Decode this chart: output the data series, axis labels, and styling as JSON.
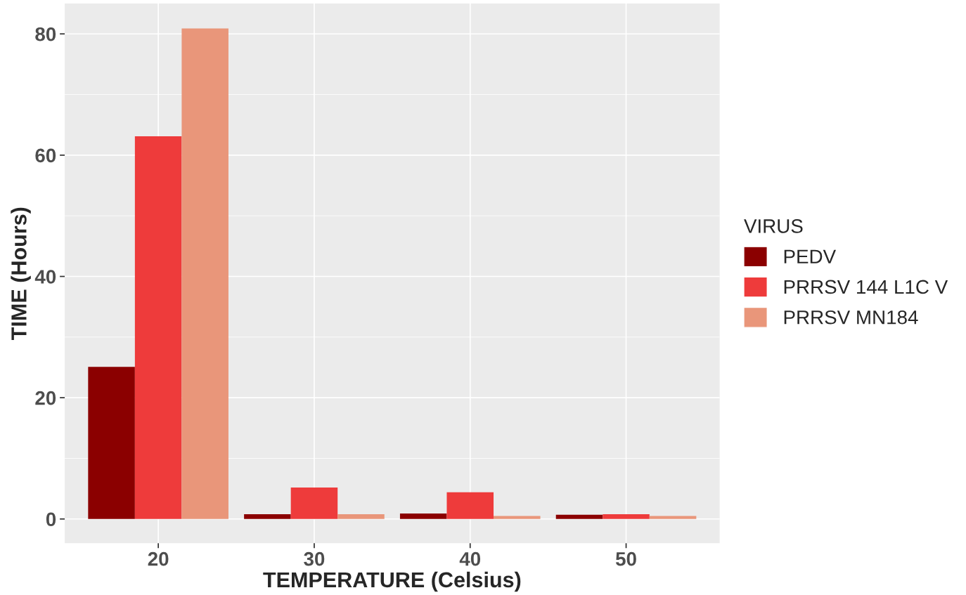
{
  "chart_data": {
    "type": "bar",
    "xlabel": "TEMPERATURE (Celsius)",
    "ylabel": "TIME (Hours)",
    "legend_title": "VIRUS",
    "categories": [
      "20",
      "30",
      "40",
      "50"
    ],
    "series": [
      {
        "name": "PEDV",
        "color": "#8b0000",
        "values": [
          25.1,
          0.8,
          0.9,
          0.7
        ]
      },
      {
        "name": "PRRSV 144 L1C V",
        "color": "#ee3b3b",
        "values": [
          63.1,
          5.2,
          4.4,
          0.8
        ]
      },
      {
        "name": "PRRSV MN184",
        "color": "#e9967a",
        "values": [
          80.9,
          0.8,
          0.5,
          0.5
        ]
      }
    ],
    "ylim": [
      -4,
      85
    ],
    "yticks": [
      0,
      20,
      40,
      60,
      80
    ],
    "grid": true,
    "legend": "right"
  }
}
